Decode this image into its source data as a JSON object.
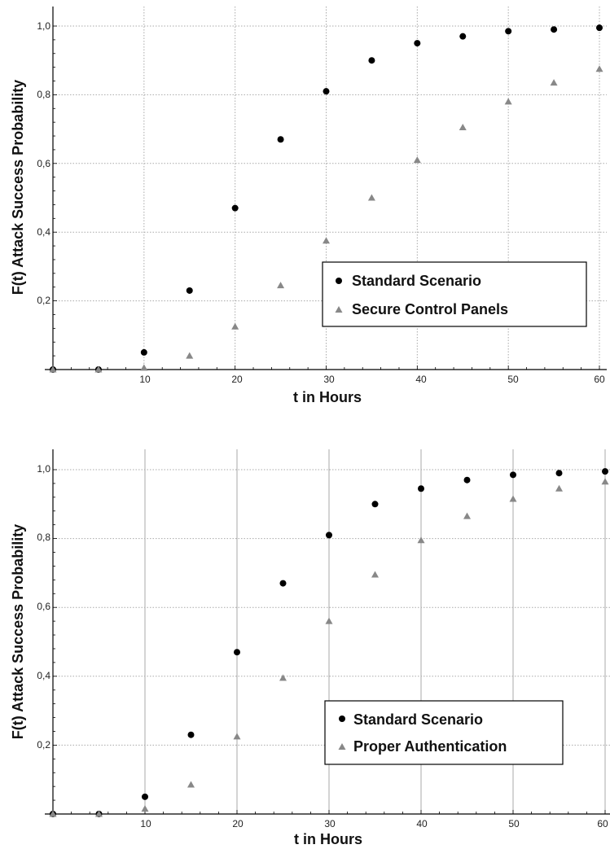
{
  "chart_data": [
    {
      "type": "scatter",
      "xlabel": "t in Hours",
      "ylabel": "F(t) Attack Success Probability",
      "xlim": [
        0,
        60
      ],
      "ylim": [
        0,
        1.0
      ],
      "x_ticks": [
        "10",
        "20",
        "30",
        "40",
        "50",
        "60"
      ],
      "y_ticks": [
        "0,2",
        "0,4",
        "0,6",
        "0,8",
        "1,0"
      ],
      "grid": "dotted",
      "legend_position": "lower-right",
      "series": [
        {
          "name": "Standard Scenario",
          "marker": "circle",
          "color": "#000000",
          "x": [
            0,
            5,
            10,
            15,
            20,
            25,
            30,
            35,
            40,
            45,
            50,
            55,
            60
          ],
          "y": [
            0.0,
            0.0,
            0.05,
            0.23,
            0.47,
            0.67,
            0.81,
            0.9,
            0.95,
            0.97,
            0.985,
            0.99,
            0.995
          ]
        },
        {
          "name": "Secure Control Panels",
          "marker": "triangle",
          "color": "#888888",
          "x": [
            0,
            5,
            10,
            15,
            20,
            25,
            30,
            35,
            40,
            45,
            50,
            55,
            60
          ],
          "y": [
            0.0,
            0.0,
            0.005,
            0.04,
            0.125,
            0.245,
            0.375,
            0.5,
            0.61,
            0.705,
            0.78,
            0.835,
            0.875
          ]
        }
      ]
    },
    {
      "type": "scatter",
      "xlabel": "t in Hours",
      "ylabel": "F(t) Attack Success Probability",
      "xlim": [
        0,
        60
      ],
      "ylim": [
        0,
        1.0
      ],
      "x_ticks": [
        "10",
        "20",
        "30",
        "40",
        "50",
        "60"
      ],
      "y_ticks": [
        "0,2",
        "0,4",
        "0,6",
        "0,8",
        "1,0"
      ],
      "grid": "solid-vertical-dotted-horizontal",
      "legend_position": "lower-right",
      "series": [
        {
          "name": "Standard Scenario",
          "marker": "circle",
          "color": "#000000",
          "x": [
            0,
            5,
            10,
            15,
            20,
            25,
            30,
            35,
            40,
            45,
            50,
            55,
            60
          ],
          "y": [
            0.0,
            0.0,
            0.05,
            0.23,
            0.47,
            0.67,
            0.81,
            0.9,
            0.945,
            0.97,
            0.985,
            0.99,
            0.995
          ]
        },
        {
          "name": "Proper Authentication",
          "marker": "triangle",
          "color": "#888888",
          "x": [
            0,
            5,
            10,
            15,
            20,
            25,
            30,
            35,
            40,
            45,
            50,
            55,
            60
          ],
          "y": [
            0.0,
            0.0,
            0.015,
            0.085,
            0.225,
            0.395,
            0.56,
            0.695,
            0.795,
            0.865,
            0.915,
            0.945,
            0.965
          ]
        }
      ]
    }
  ]
}
